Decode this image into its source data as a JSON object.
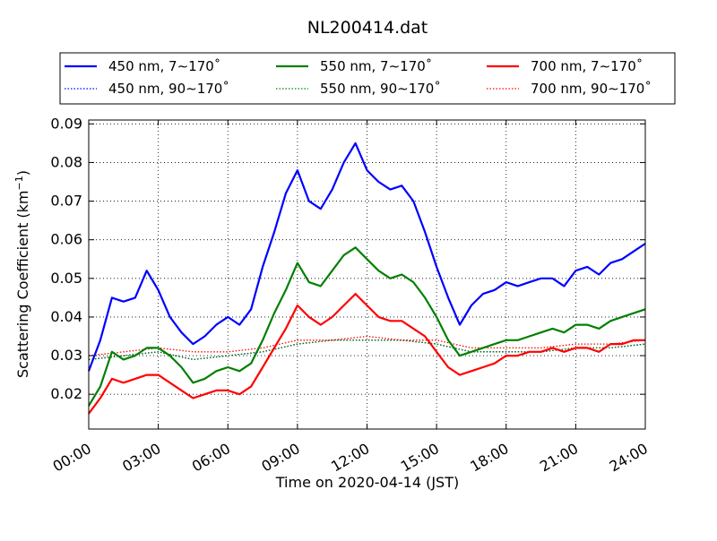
{
  "chart_data": {
    "type": "line",
    "title": "NL200414.dat",
    "xlabel": "Time on 2020-04-14 (JST)",
    "ylabel": "Scattering Coefficient (km",
    "ylabel_sup": "−1",
    "ylabel_end": ")",
    "xlim": [
      "00:00",
      "24:00"
    ],
    "ylim": [
      0.011,
      0.091
    ],
    "x_ticks": [
      "00:00",
      "03:00",
      "06:00",
      "09:00",
      "12:00",
      "15:00",
      "18:00",
      "21:00",
      "24:00"
    ],
    "y_ticks": [
      "0.02",
      "0.03",
      "0.04",
      "0.05",
      "0.06",
      "0.07",
      "0.08",
      "0.09"
    ],
    "grid": true,
    "legend_position": "top, above plot (3 columns)",
    "series": [
      {
        "name": "450 nm, 7∼170˚",
        "color": "#0000ff",
        "style": "solid",
        "x": [
          "00:00",
          "00:30",
          "01:00",
          "01:30",
          "02:00",
          "02:30",
          "03:00",
          "03:30",
          "04:00",
          "04:30",
          "05:00",
          "05:30",
          "06:00",
          "06:30",
          "07:00",
          "07:30",
          "08:00",
          "08:30",
          "09:00",
          "09:30",
          "10:00",
          "10:30",
          "11:00",
          "11:30",
          "12:00",
          "12:30",
          "13:00",
          "13:30",
          "14:00",
          "14:30",
          "15:00",
          "15:30",
          "16:00",
          "16:30",
          "17:00",
          "17:30",
          "18:00",
          "18:30",
          "19:00",
          "19:30",
          "20:00",
          "20:30",
          "21:00",
          "21:30",
          "22:00",
          "22:30",
          "23:00",
          "23:30",
          "24:00"
        ],
        "y": [
          0.026,
          0.034,
          0.045,
          0.044,
          0.045,
          0.052,
          0.047,
          0.04,
          0.036,
          0.033,
          0.035,
          0.038,
          0.04,
          0.038,
          0.042,
          0.053,
          0.062,
          0.072,
          0.078,
          0.07,
          0.068,
          0.073,
          0.08,
          0.085,
          0.078,
          0.075,
          0.073,
          0.074,
          0.07,
          0.062,
          0.053,
          0.045,
          0.038,
          0.043,
          0.046,
          0.047,
          0.049,
          0.048,
          0.049,
          0.05,
          0.05,
          0.048,
          0.052,
          0.053,
          0.051,
          0.054,
          0.055,
          0.057,
          0.059
        ]
      },
      {
        "name": "450 nm, 90∼170˚",
        "color": "#0000ff",
        "style": "dotted",
        "x": [
          "00:00",
          "01:30",
          "03:00",
          "04:30",
          "06:00",
          "07:30",
          "09:00",
          "10:30",
          "12:00",
          "13:30",
          "15:00",
          "16:30",
          "18:00",
          "19:30",
          "21:00",
          "22:30",
          "24:00"
        ],
        "y": [
          0.029,
          0.03,
          0.031,
          0.029,
          0.03,
          0.031,
          0.033,
          0.034,
          0.034,
          0.034,
          0.033,
          0.031,
          0.031,
          0.031,
          0.032,
          0.032,
          0.033
        ]
      },
      {
        "name": "550 nm, 7∼170˚",
        "color": "#008000",
        "style": "solid",
        "x": [
          "00:00",
          "00:30",
          "01:00",
          "01:30",
          "02:00",
          "02:30",
          "03:00",
          "03:30",
          "04:00",
          "04:30",
          "05:00",
          "05:30",
          "06:00",
          "06:30",
          "07:00",
          "07:30",
          "08:00",
          "08:30",
          "09:00",
          "09:30",
          "10:00",
          "10:30",
          "11:00",
          "11:30",
          "12:00",
          "12:30",
          "13:00",
          "13:30",
          "14:00",
          "14:30",
          "15:00",
          "15:30",
          "16:00",
          "16:30",
          "17:00",
          "17:30",
          "18:00",
          "18:30",
          "19:00",
          "19:30",
          "20:00",
          "20:30",
          "21:00",
          "21:30",
          "22:00",
          "22:30",
          "23:00",
          "23:30",
          "24:00"
        ],
        "y": [
          0.017,
          0.022,
          0.031,
          0.029,
          0.03,
          0.032,
          0.032,
          0.03,
          0.027,
          0.023,
          0.024,
          0.026,
          0.027,
          0.026,
          0.028,
          0.034,
          0.041,
          0.047,
          0.054,
          0.049,
          0.048,
          0.052,
          0.056,
          0.058,
          0.055,
          0.052,
          0.05,
          0.051,
          0.049,
          0.045,
          0.04,
          0.034,
          0.03,
          0.031,
          0.032,
          0.033,
          0.034,
          0.034,
          0.035,
          0.036,
          0.037,
          0.036,
          0.038,
          0.038,
          0.037,
          0.039,
          0.04,
          0.041,
          0.042
        ]
      },
      {
        "name": "550 nm, 90∼170˚",
        "color": "#008000",
        "style": "dotted",
        "x": [
          "00:00",
          "01:30",
          "03:00",
          "04:30",
          "06:00",
          "07:30",
          "09:00",
          "10:30",
          "12:00",
          "13:30",
          "15:00",
          "16:30",
          "18:00",
          "19:30",
          "21:00",
          "22:30",
          "24:00"
        ],
        "y": [
          0.029,
          0.03,
          0.031,
          0.029,
          0.03,
          0.031,
          0.033,
          0.034,
          0.034,
          0.034,
          0.033,
          0.031,
          0.031,
          0.031,
          0.032,
          0.032,
          0.033
        ]
      },
      {
        "name": "700 nm, 7∼170˚",
        "color": "#ff0000",
        "style": "solid",
        "x": [
          "00:00",
          "00:30",
          "01:00",
          "01:30",
          "02:00",
          "02:30",
          "03:00",
          "03:30",
          "04:00",
          "04:30",
          "05:00",
          "05:30",
          "06:00",
          "06:30",
          "07:00",
          "07:30",
          "08:00",
          "08:30",
          "09:00",
          "09:30",
          "10:00",
          "10:30",
          "11:00",
          "11:30",
          "12:00",
          "12:30",
          "13:00",
          "13:30",
          "14:00",
          "14:30",
          "15:00",
          "15:30",
          "16:00",
          "16:30",
          "17:00",
          "17:30",
          "18:00",
          "18:30",
          "19:00",
          "19:30",
          "20:00",
          "20:30",
          "21:00",
          "21:30",
          "22:00",
          "22:30",
          "23:00",
          "23:30",
          "24:00"
        ],
        "y": [
          0.015,
          0.019,
          0.024,
          0.023,
          0.024,
          0.025,
          0.025,
          0.023,
          0.021,
          0.019,
          0.02,
          0.021,
          0.021,
          0.02,
          0.022,
          0.027,
          0.032,
          0.037,
          0.043,
          0.04,
          0.038,
          0.04,
          0.043,
          0.046,
          0.043,
          0.04,
          0.039,
          0.039,
          0.037,
          0.035,
          0.031,
          0.027,
          0.025,
          0.026,
          0.027,
          0.028,
          0.03,
          0.03,
          0.031,
          0.031,
          0.032,
          0.031,
          0.032,
          0.032,
          0.031,
          0.033,
          0.033,
          0.034,
          0.034
        ]
      },
      {
        "name": "700 nm, 90∼170˚",
        "color": "#ff0000",
        "style": "dotted",
        "x": [
          "00:00",
          "01:30",
          "03:00",
          "04:30",
          "06:00",
          "07:30",
          "09:00",
          "10:30",
          "12:00",
          "13:30",
          "15:00",
          "16:30",
          "18:00",
          "19:30",
          "21:00",
          "22:30",
          "24:00"
        ],
        "y": [
          0.03,
          0.031,
          0.032,
          0.031,
          0.031,
          0.032,
          0.034,
          0.034,
          0.035,
          0.034,
          0.034,
          0.032,
          0.032,
          0.032,
          0.033,
          0.033,
          0.034
        ]
      }
    ]
  }
}
